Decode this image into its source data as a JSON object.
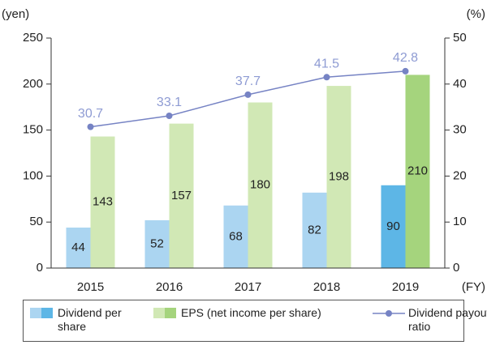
{
  "chart_data": {
    "type": "bar_line",
    "categories": [
      "2015",
      "2016",
      "2017",
      "2018",
      "2019"
    ],
    "x_unit": "(FY)",
    "y_label": "(yen)",
    "y2_label": "(%)",
    "ylim": [
      0,
      250
    ],
    "yticks": [
      0,
      50,
      100,
      150,
      200,
      250
    ],
    "y2lim": [
      0,
      50
    ],
    "y2ticks": [
      0,
      10,
      20,
      30,
      40,
      50
    ],
    "grid": false,
    "series": [
      {
        "name": "Dividend per share",
        "type": "bar",
        "color": "#abd5f1",
        "highlight_color": "#5db6e6",
        "values": [
          44,
          52,
          68,
          82,
          90
        ]
      },
      {
        "name": "EPS (net income per share)",
        "type": "bar",
        "color": "#d1e8b5",
        "highlight_color": "#a5d47d",
        "values": [
          143,
          157,
          180,
          198,
          210
        ]
      },
      {
        "name": "Dividend payout ratio",
        "type": "line",
        "axis": "y2",
        "color": "#7683c4",
        "label_color": "#8e9bd3",
        "values": [
          30.7,
          33.1,
          37.7,
          41.5,
          42.8
        ]
      }
    ]
  }
}
